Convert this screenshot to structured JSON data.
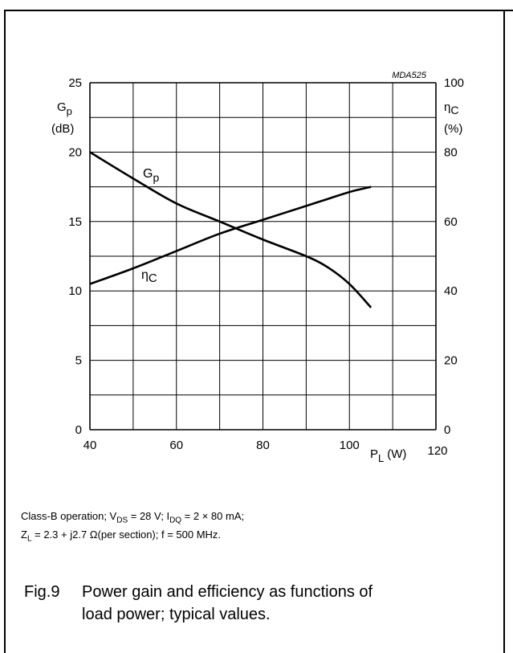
{
  "figure_code": "MDA525",
  "left_axis": {
    "symbol": "G",
    "symbol_sub": "p",
    "unit": "(dB)",
    "ticks": [
      "0",
      "5",
      "10",
      "15",
      "20",
      "25"
    ]
  },
  "right_axis": {
    "symbol": "η",
    "symbol_sub": "C",
    "unit": "(%)",
    "ticks": [
      "0",
      "20",
      "40",
      "60",
      "80",
      "100"
    ]
  },
  "x_axis": {
    "symbol": "P",
    "symbol_sub": "L",
    "unit": "(W)",
    "ticks": [
      "40",
      "60",
      "80",
      "100",
      "120"
    ]
  },
  "conditions": {
    "line1_a": "Class-B operation; V",
    "line1_a_sub": "DS",
    "line1_b": " = 28 V; I",
    "line1_b_sub": "DQ",
    "line1_c": " = 2 × 80 mA;",
    "line2_a": "Z",
    "line2_a_sub": "L",
    "line2_b": " = 2.3 + j2.7 Ω(per section); f = 500 MHz."
  },
  "caption": {
    "number": "Fig.9",
    "line1": "Power gain and efficiency as functions of",
    "line2": "load power; typical values."
  },
  "chart_data": {
    "type": "line",
    "x": [
      40,
      50,
      60,
      70,
      80,
      90,
      95,
      100,
      105
    ],
    "xlim": [
      40,
      120
    ],
    "ylim_left": [
      0,
      25
    ],
    "ylim_right": [
      0,
      100
    ],
    "grid": true,
    "series": [
      {
        "name": "Gp",
        "axis": "left",
        "values": [
          20,
          18.1,
          16.3,
          15.0,
          13.7,
          12.5,
          11.7,
          10.5,
          8.8
        ]
      },
      {
        "name": "ηC",
        "axis": "right",
        "values": [
          42,
          46.5,
          51.5,
          56.5,
          60.5,
          64.5,
          66.5,
          68.5,
          70
        ]
      }
    ]
  }
}
